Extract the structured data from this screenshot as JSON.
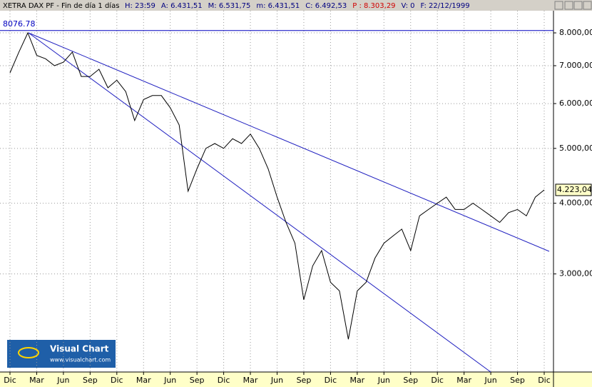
{
  "header": {
    "title": "XETRA DAX PF - Fin de día 1 días",
    "fields": [
      {
        "text": "H: 23:59",
        "color": "#000080"
      },
      {
        "text": "A: 6.431,51",
        "color": "#000080"
      },
      {
        "text": "M: 6.531,75",
        "color": "#000080"
      },
      {
        "text": "m: 6.431,51",
        "color": "#000080"
      },
      {
        "text": "C: 6.492,53",
        "color": "#000080"
      },
      {
        "text": "P : 8.303,29",
        "color": "#d00000"
      },
      {
        "text": "V: 0",
        "color": "#000080"
      },
      {
        "text": "F: 22/12/1999",
        "color": "#000080"
      }
    ]
  },
  "logo": {
    "name": "Visual Chart",
    "url": "www.visualchart.com"
  },
  "chart_data": {
    "type": "line",
    "log_scale": true,
    "grid": true,
    "color": "#000000",
    "categories": [
      "Dic",
      null,
      null,
      "Mar",
      null,
      null,
      "Jun",
      null,
      null,
      "Sep",
      null,
      null,
      "Dic",
      null,
      null,
      "Mar",
      null,
      null,
      "Jun",
      null,
      null,
      "Sep",
      null,
      null,
      "Dic",
      null,
      null,
      "Mar",
      null,
      null,
      "Jun",
      null,
      null,
      "Sep",
      null,
      null,
      "Dic",
      null,
      null,
      "Mar",
      null,
      null,
      "Jun",
      null,
      null,
      "Sep",
      null,
      null,
      "Dic",
      null,
      null,
      "Mar",
      null,
      null,
      "Jun",
      null,
      null,
      "Sep",
      null,
      null,
      "Dic"
    ],
    "values": [
      6800,
      7400,
      8000,
      7300,
      7200,
      7000,
      7100,
      7400,
      6700,
      6700,
      6900,
      6400,
      6600,
      6300,
      5600,
      6100,
      6200,
      6200,
      5900,
      5500,
      4200,
      4600,
      5000,
      5100,
      5000,
      5200,
      5100,
      5300,
      5000,
      4600,
      4100,
      3700,
      3400,
      2700,
      3100,
      3300,
      2900,
      2800,
      2300,
      2800,
      2900,
      3200,
      3400,
      3500,
      3600,
      3300,
      3800,
      3900,
      4000,
      4100,
      3900,
      3900,
      4000,
      3900,
      3800,
      3700,
      3850,
      3900,
      3800,
      4100,
      4223.04
    ],
    "ylim": [
      2013,
      8755
    ],
    "yticks": [
      {
        "value": 3000,
        "label": "3.000,00"
      },
      {
        "value": 4000,
        "label": "4.000,00"
      },
      {
        "value": 5000,
        "label": "5.000,00"
      },
      {
        "value": 6000,
        "label": "6.000,00"
      },
      {
        "value": 7000,
        "label": "7.000,00"
      },
      {
        "value": 8000,
        "label": "8.000,00"
      }
    ],
    "reference_line": {
      "value": 8076.78,
      "label": "8076.78",
      "color": "#0000c0"
    },
    "last_price": {
      "value": 4223.04,
      "label": "4.223,04"
    }
  }
}
